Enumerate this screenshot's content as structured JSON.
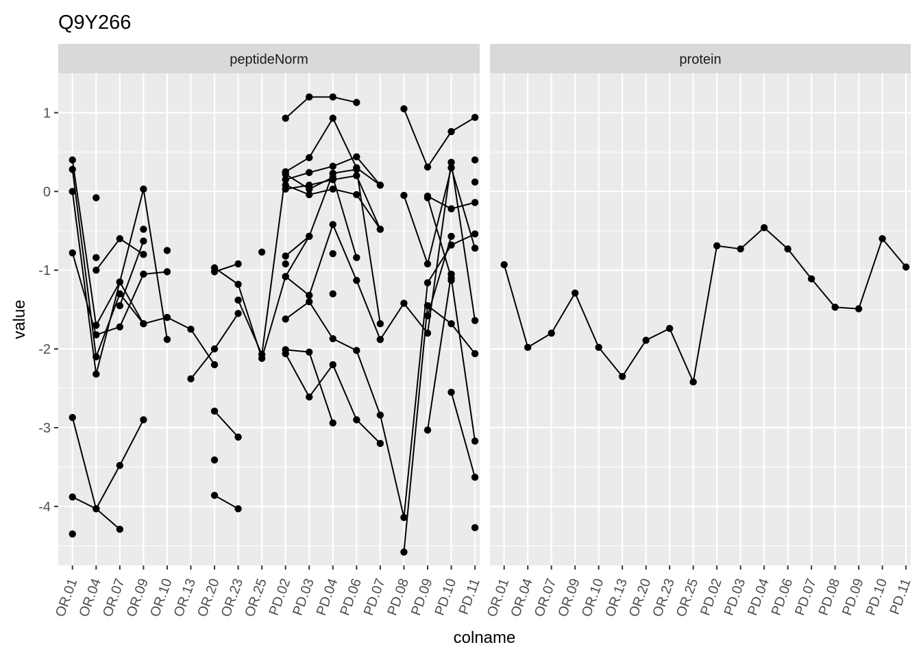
{
  "chart_data": {
    "type": "line",
    "title": "Q9Y266",
    "xlabel": "colname",
    "ylabel": "value",
    "ylim": [
      -4.75,
      1.5
    ],
    "yticks": [
      1,
      0,
      -1,
      -2,
      -3,
      -4
    ],
    "ytick_labels": [
      "1",
      "0",
      "-1",
      "-2",
      "-3",
      "-4"
    ],
    "categories": [
      "OR.01",
      "OR.04",
      "OR.07",
      "OR.09",
      "OR.10",
      "OR.13",
      "OR.20",
      "OR.23",
      "OR.25",
      "PD.02",
      "PD.03",
      "PD.04",
      "PD.06",
      "PD.07",
      "PD.08",
      "PD.09",
      "PD.10",
      "PD.11"
    ],
    "grid": true,
    "panels": [
      {
        "name": "peptideNorm",
        "series": [
          {
            "values": [
              0.4,
              -1.7,
              -1.15,
              -1.68,
              -1.6,
              -1.75,
              -2.2,
              null,
              null,
              0.03,
              0.08,
              0.15,
              0.2,
              -0.48,
              null,
              null,
              null,
              null
            ]
          },
          {
            "values": [
              0.28,
              -2.1,
              -1.3,
              -1.68,
              null,
              null,
              null,
              null,
              null,
              0.25,
              0.43,
              0.93,
              0.3,
              0.08,
              null,
              null,
              null,
              null
            ]
          },
          {
            "values": [
              0.0,
              -2.32,
              -1.15,
              0.03,
              -1.88,
              null,
              null,
              null,
              null,
              0.08,
              -0.04,
              0.03,
              -0.04,
              -0.48,
              null,
              null,
              null,
              null
            ]
          },
          {
            "values": [
              -0.78,
              -1.82,
              -1.72,
              -1.05,
              -1.02,
              null,
              null,
              null,
              null,
              0.15,
              0.24,
              0.32,
              0.44,
              0.08,
              null,
              null,
              null,
              null
            ]
          },
          {
            "values": [
              -2.87,
              -4.03,
              -3.48,
              -2.9,
              null,
              null,
              null,
              null,
              null,
              -0.82,
              -0.57,
              0.23,
              0.28,
              -1.68,
              null,
              null,
              null,
              null
            ]
          },
          {
            "values": [
              -3.88,
              -4.03,
              -4.29,
              null,
              null,
              null,
              null,
              null,
              null,
              -1.08,
              -1.32,
              -0.42,
              -1.13,
              -1.88,
              null,
              null,
              null,
              null
            ]
          },
          {
            "values": [
              null,
              -1.0,
              -0.6,
              -0.8,
              null,
              null,
              null,
              null,
              null,
              -1.62,
              -1.4,
              -1.87,
              -2.02,
              -2.84,
              -4.14,
              -1.16,
              -0.68,
              -0.54
            ]
          },
          {
            "values": [
              null,
              null,
              -1.45,
              -0.63,
              null,
              null,
              null,
              null,
              null,
              -2.01,
              -2.04,
              -2.94,
              null,
              null,
              null,
              null,
              null,
              null
            ]
          },
          {
            "values": [
              null,
              null,
              null,
              null,
              null,
              -2.38,
              -2.0,
              -1.55,
              null,
              null,
              null,
              null,
              null,
              null,
              null,
              null,
              null,
              null
            ]
          },
          {
            "values": [
              null,
              null,
              null,
              null,
              null,
              null,
              -1.02,
              -0.92,
              null,
              0.93,
              1.2,
              1.2,
              1.13,
              null,
              null,
              null,
              null,
              null
            ]
          },
          {
            "values": [
              null,
              null,
              null,
              null,
              null,
              null,
              -0.97,
              -1.18,
              -2.12,
              -1.08,
              -0.57,
              null,
              null,
              null,
              null,
              null,
              null,
              null
            ]
          },
          {
            "values": [
              null,
              null,
              null,
              null,
              null,
              null,
              null,
              -1.38,
              -2.07,
              0.22,
              0.03,
              0.18,
              -0.84,
              null,
              null,
              null,
              null,
              null
            ]
          },
          {
            "values": [
              null,
              null,
              null,
              null,
              null,
              null,
              -3.86,
              -4.03,
              null,
              -2.06,
              -2.61,
              -2.2,
              -2.9,
              -3.2,
              null,
              null,
              null,
              null
            ]
          },
          {
            "values": [
              null,
              null,
              null,
              null,
              null,
              null,
              -2.79,
              -3.12,
              null,
              null,
              null,
              null,
              null,
              null,
              null,
              null,
              null,
              null
            ]
          },
          {
            "values": [
              null,
              null,
              null,
              null,
              null,
              null,
              null,
              null,
              null,
              null,
              null,
              null,
              null,
              -1.88,
              -1.42,
              -1.8,
              0.37,
              -1.64
            ]
          },
          {
            "values": [
              null,
              null,
              null,
              null,
              null,
              null,
              null,
              null,
              null,
              null,
              null,
              null,
              null,
              null,
              1.05,
              0.31,
              0.76,
              0.94
            ]
          },
          {
            "values": [
              null,
              null,
              null,
              null,
              null,
              null,
              null,
              null,
              null,
              null,
              null,
              null,
              null,
              null,
              -0.05,
              -0.92,
              0.3,
              -0.72
            ]
          },
          {
            "values": [
              null,
              null,
              null,
              null,
              null,
              null,
              null,
              null,
              null,
              null,
              null,
              null,
              null,
              null,
              -4.58,
              -1.45,
              -1.68,
              -2.06
            ]
          },
          {
            "values": [
              null,
              null,
              null,
              null,
              null,
              null,
              null,
              null,
              null,
              null,
              null,
              null,
              null,
              null,
              null,
              -0.06,
              -0.22,
              -0.14
            ]
          },
          {
            "values": [
              null,
              null,
              null,
              null,
              null,
              null,
              null,
              null,
              null,
              null,
              null,
              null,
              null,
              null,
              null,
              -3.03,
              -1.05,
              null
            ]
          },
          {
            "values": [
              null,
              null,
              null,
              null,
              null,
              null,
              null,
              null,
              null,
              null,
              null,
              null,
              null,
              null,
              null,
              -0.08,
              -1.1,
              -3.17
            ]
          },
          {
            "values": [
              null,
              null,
              null,
              null,
              null,
              null,
              null,
              null,
              null,
              null,
              null,
              null,
              null,
              null,
              null,
              -1.58,
              -0.57,
              null
            ]
          },
          {
            "values": [
              null,
              null,
              null,
              null,
              null,
              null,
              null,
              null,
              null,
              null,
              null,
              null,
              null,
              null,
              null,
              null,
              -2.55,
              -3.63
            ]
          }
        ],
        "points": [
          [
            0,
            -4.35
          ],
          [
            1,
            -0.08
          ],
          [
            1,
            -0.84
          ],
          [
            3,
            -0.48
          ],
          [
            4,
            -0.75
          ],
          [
            6,
            -3.41
          ],
          [
            8,
            -0.77
          ],
          [
            9,
            -0.92
          ],
          [
            11,
            -0.79
          ],
          [
            11,
            -1.3
          ],
          [
            16,
            -1.13
          ],
          [
            17,
            -4.27
          ],
          [
            17,
            0.4
          ],
          [
            17,
            0.12
          ]
        ]
      },
      {
        "name": "protein",
        "series": [
          {
            "values": [
              -0.93,
              -1.98,
              -1.8,
              -1.29,
              -1.98,
              -2.35,
              -1.89,
              -1.74,
              -2.42,
              -0.69,
              -0.73,
              -0.46,
              -0.73,
              -1.11,
              -1.47,
              -1.49,
              -0.6,
              -0.96
            ]
          }
        ],
        "points": []
      }
    ]
  }
}
